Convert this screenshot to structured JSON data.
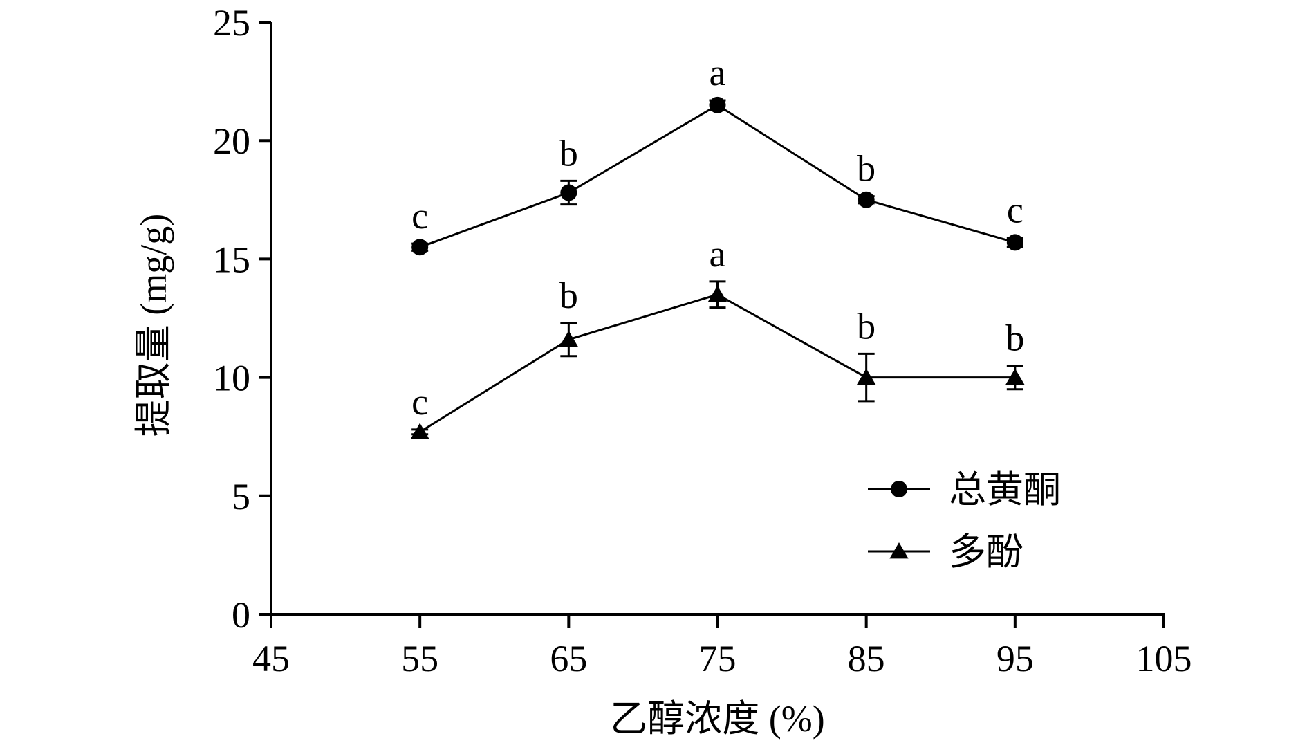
{
  "chart_data": {
    "type": "line",
    "title": "",
    "xlabel": "乙醇浓度 (%)",
    "ylabel": "提取量 (mg/g)",
    "xlim": [
      45,
      105
    ],
    "ylim": [
      0,
      25
    ],
    "x_ticks": [
      "45",
      "55",
      "65",
      "75",
      "85",
      "95",
      "105"
    ],
    "y_ticks": [
      "0",
      "5",
      "10",
      "15",
      "20",
      "25"
    ],
    "x": [
      55,
      65,
      75,
      85,
      95
    ],
    "grid": false,
    "legend_position": "bottom-right",
    "series": [
      {
        "name": "总黄酮",
        "marker": "circle",
        "values": [
          15.5,
          17.8,
          21.5,
          17.5,
          15.7
        ],
        "errors": [
          0.15,
          0.5,
          0.2,
          0.15,
          0.2
        ],
        "labels": [
          "c",
          "b",
          "a",
          "b",
          "c"
        ]
      },
      {
        "name": "多酚",
        "marker": "triangle",
        "values": [
          7.7,
          11.6,
          13.5,
          10.0,
          10.0
        ],
        "errors": [
          0.1,
          0.7,
          0.55,
          1.0,
          0.5
        ],
        "labels": [
          "c",
          "b",
          "a",
          "b",
          "b"
        ]
      }
    ]
  }
}
